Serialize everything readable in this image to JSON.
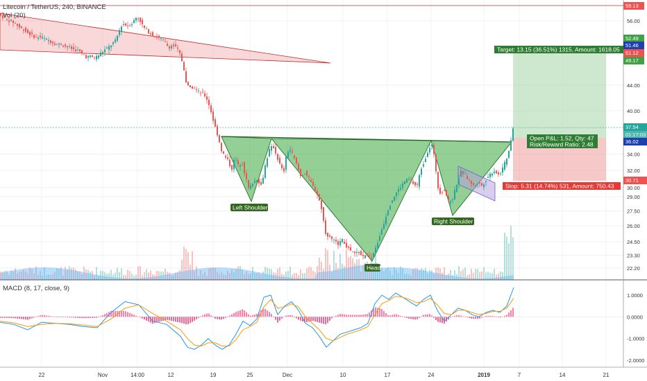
{
  "header": {
    "symbol_line": "Litecoin / TetherUS, 240, BINANCE",
    "volume_label": "Vol (20)",
    "macd_label": "MACD (8, 17, close, 9)"
  },
  "colors": {
    "up": "#26a69a",
    "down": "#ef5350",
    "pattern_fill": "#4caf50",
    "wedge_fill": "#e57373",
    "target_zone": "#a5d6a7",
    "stop_zone": "#ef9a9a",
    "macd_line": "#2196f3",
    "signal_line": "#ff9800",
    "hist_pos": "#ff4081",
    "hist_neg": "#e91e63"
  },
  "chart_data": [
    {
      "type": "candlestick",
      "title": "Litecoin / TetherUS, 240, BINANCE",
      "xlabel": "",
      "ylabel": "",
      "x_ticks": [
        "22",
        "Nov",
        "14:00",
        "12",
        "19",
        "25",
        "Dec",
        "10",
        "17",
        "24",
        "2019",
        "7",
        "14",
        "21"
      ],
      "y_ticks": [
        22.2,
        23.3,
        24.5,
        26.0,
        27.5,
        29.0,
        30.0,
        32.0,
        34.0,
        37.5,
        40.0,
        44.0,
        49.17,
        51.12,
        51.46,
        52.49,
        56.0
      ],
      "log_scale": true,
      "price_path": [
        [
          0,
          57.4
        ],
        [
          6,
          56.8
        ],
        [
          12,
          56.2
        ],
        [
          18,
          55.9
        ],
        [
          24,
          55.4
        ],
        [
          30,
          54.6
        ],
        [
          36,
          54.2
        ],
        [
          42,
          53.5
        ],
        [
          48,
          53.0
        ],
        [
          54,
          52.6
        ],
        [
          60,
          52.7
        ],
        [
          66,
          52.3
        ],
        [
          72,
          52.0
        ],
        [
          78,
          51.6
        ],
        [
          84,
          51.2
        ],
        [
          90,
          51.3
        ],
        [
          96,
          50.9
        ],
        [
          102,
          50.6
        ],
        [
          108,
          50.3
        ],
        [
          114,
          50.1
        ],
        [
          120,
          49.5
        ],
        [
          126,
          48.9
        ],
        [
          132,
          49.0
        ],
        [
          138,
          48.7
        ],
        [
          144,
          49.3
        ],
        [
          150,
          50.0
        ],
        [
          156,
          50.5
        ],
        [
          162,
          51.2
        ],
        [
          168,
          52.0
        ],
        [
          172,
          53.5
        ],
        [
          176,
          55.0
        ],
        [
          180,
          55.2
        ],
        [
          186,
          55.0
        ],
        [
          192,
          55.5
        ],
        [
          198,
          56.8
        ],
        [
          204,
          55.9
        ],
        [
          208,
          54.7
        ],
        [
          214,
          53.9
        ],
        [
          220,
          53.2
        ],
        [
          226,
          52.8
        ],
        [
          232,
          52.4
        ],
        [
          238,
          51.9
        ],
        [
          244,
          50.7
        ],
        [
          250,
          51.1
        ],
        [
          256,
          50.6
        ],
        [
          262,
          49.1
        ],
        [
          266,
          46.8
        ],
        [
          270,
          44.3
        ],
        [
          274,
          43.5
        ],
        [
          280,
          43.8
        ],
        [
          286,
          43.0
        ],
        [
          292,
          42.7
        ],
        [
          298,
          42.2
        ],
        [
          304,
          40.5
        ],
        [
          308,
          38.8
        ],
        [
          312,
          37.4
        ],
        [
          316,
          36.2
        ],
        [
          320,
          34.6
        ],
        [
          325,
          33.7
        ],
        [
          330,
          33.2
        ],
        [
          335,
          32.1
        ],
        [
          340,
          33.6
        ],
        [
          345,
          32.5
        ],
        [
          350,
          33.0
        ],
        [
          355,
          31.3
        ],
        [
          360,
          29.8
        ],
        [
          366,
          30.6
        ],
        [
          372,
          31.0
        ],
        [
          378,
          30.2
        ],
        [
          384,
          32.8
        ],
        [
          390,
          34.7
        ],
        [
          395,
          35.0
        ],
        [
          400,
          33.8
        ],
        [
          405,
          32.6
        ],
        [
          410,
          31.7
        ],
        [
          415,
          34.3
        ],
        [
          420,
          34.6
        ],
        [
          425,
          33.5
        ],
        [
          430,
          32.4
        ],
        [
          435,
          31.2
        ],
        [
          440,
          31.8
        ],
        [
          446,
          31.1
        ],
        [
          452,
          30.2
        ],
        [
          458,
          29.4
        ],
        [
          464,
          28.0
        ],
        [
          470,
          25.4
        ],
        [
          476,
          24.9
        ],
        [
          482,
          24.6
        ],
        [
          488,
          24.3
        ],
        [
          494,
          24.7
        ],
        [
          500,
          24.1
        ],
        [
          506,
          23.7
        ],
        [
          512,
          23.4
        ],
        [
          518,
          23.6
        ],
        [
          524,
          23.1
        ],
        [
          530,
          23.4
        ],
        [
          536,
          22.9
        ],
        [
          542,
          23.8
        ],
        [
          548,
          25.0
        ],
        [
          554,
          26.2
        ],
        [
          560,
          27.6
        ],
        [
          566,
          28.6
        ],
        [
          572,
          29.4
        ],
        [
          578,
          30.0
        ],
        [
          584,
          30.7
        ],
        [
          590,
          31.0
        ],
        [
          596,
          30.5
        ],
        [
          602,
          30.1
        ],
        [
          608,
          32.2
        ],
        [
          614,
          33.4
        ],
        [
          619,
          34.8
        ],
        [
          624,
          35.2
        ],
        [
          628,
          33.1
        ],
        [
          632,
          30.1
        ],
        [
          636,
          29.4
        ],
        [
          642,
          29.8
        ],
        [
          648,
          28.3
        ],
        [
          654,
          28.9
        ],
        [
          660,
          30.6
        ],
        [
          666,
          31.9
        ],
        [
          672,
          31.4
        ],
        [
          678,
          30.7
        ],
        [
          684,
          30.2
        ],
        [
          690,
          30.6
        ],
        [
          696,
          30.2
        ],
        [
          702,
          31.0
        ],
        [
          708,
          31.6
        ],
        [
          714,
          32.0
        ],
        [
          720,
          31.4
        ],
        [
          726,
          32.3
        ],
        [
          732,
          33.6
        ],
        [
          736,
          34.7
        ],
        [
          740,
          37.5
        ]
      ]
    },
    {
      "type": "bar",
      "title": "Vol (20)",
      "note": "volume histogram with moving average, scale not printed"
    },
    {
      "type": "line",
      "title": "MACD (8, 17, close, 9)",
      "y_ticks": [
        1.0,
        0.0,
        -1.0,
        -2.0
      ],
      "ylim": [
        -2.0,
        1.0
      ],
      "series": [
        {
          "values_x": [
            0,
            20,
            40,
            60,
            80,
            100,
            120,
            140,
            160,
            180,
            200,
            220,
            240,
            260,
            270,
            280,
            290,
            300,
            310,
            320,
            330,
            340,
            350,
            360,
            370,
            380,
            390,
            400,
            410,
            420,
            430,
            440,
            450,
            460,
            470,
            480,
            490,
            500,
            510,
            520,
            530,
            540,
            550,
            560,
            570,
            580,
            590,
            600,
            610,
            620,
            630,
            640,
            650,
            660,
            670,
            680,
            690,
            700,
            710,
            720,
            730,
            740
          ],
          "values": [
            -0.25,
            -0.35,
            -0.6,
            -0.25,
            -0.3,
            -0.35,
            -0.45,
            -0.5,
            0.2,
            0.7,
            0.55,
            -0.2,
            -0.35,
            -0.9,
            -1.4,
            -1.5,
            -1.3,
            -1.0,
            -1.3,
            -1.5,
            -1.3,
            -0.8,
            -0.2,
            -0.4,
            -0.1,
            0.9,
            1.0,
            0.1,
            0.5,
            0.7,
            0.3,
            -0.3,
            -0.5,
            -0.9,
            -1.4,
            -1.1,
            -0.8,
            -0.7,
            -0.6,
            -0.5,
            -0.3,
            0.6,
            1.0,
            0.8,
            1.1,
            0.9,
            0.7,
            0.5,
            0.8,
            1.0,
            0.3,
            -0.2,
            0.1,
            0.4,
            0.3,
            0.1,
            0.0,
            0.2,
            0.3,
            0.2,
            0.5,
            1.35
          ]
        },
        {
          "values_x": [
            0,
            20,
            40,
            60,
            80,
            100,
            120,
            140,
            160,
            180,
            200,
            220,
            240,
            260,
            270,
            280,
            290,
            300,
            310,
            320,
            330,
            340,
            350,
            360,
            370,
            380,
            390,
            400,
            410,
            420,
            430,
            440,
            450,
            460,
            470,
            480,
            490,
            500,
            510,
            520,
            530,
            540,
            550,
            560,
            570,
            580,
            590,
            600,
            610,
            620,
            630,
            640,
            650,
            660,
            670,
            680,
            690,
            700,
            710,
            720,
            730,
            740
          ],
          "values": [
            -0.2,
            -0.28,
            -0.45,
            -0.35,
            -0.3,
            -0.32,
            -0.38,
            -0.45,
            -0.1,
            0.4,
            0.55,
            0.15,
            -0.2,
            -0.6,
            -1.0,
            -1.3,
            -1.35,
            -1.2,
            -1.2,
            -1.35,
            -1.35,
            -1.05,
            -0.6,
            -0.45,
            -0.25,
            0.45,
            0.8,
            0.4,
            0.45,
            0.6,
            0.45,
            0.0,
            -0.3,
            -0.6,
            -1.0,
            -1.1,
            -0.95,
            -0.8,
            -0.7,
            -0.6,
            -0.45,
            0.1,
            0.6,
            0.75,
            0.95,
            0.9,
            0.8,
            0.65,
            0.7,
            0.85,
            0.55,
            0.15,
            0.1,
            0.3,
            0.3,
            0.2,
            0.1,
            0.15,
            0.25,
            0.25,
            0.4,
            0.85
          ]
        }
      ]
    }
  ],
  "annotations": {
    "left_shoulder": "Left Shoulder",
    "head": "Head",
    "right_shoulder": "Right Shoulder",
    "target": "Target: 13.15 (36.51%) 1315, Amount: 1618.05",
    "open_pnl": "Open P&L: 1.52, Qty: 47",
    "risk_reward": "Risk/Reward Ratio: 2.48",
    "stop": "Stop: 5.31 (14.74%) 531, Amount: 750.43"
  },
  "price_tags": {
    "top": "59.13",
    "t1": "52.49",
    "t2": "51.46",
    "t3": "51.12",
    "t4": "49.17",
    "current": "37.54",
    "timer": "01:17:03",
    "entry": "36.02",
    "stop": "30.71"
  }
}
